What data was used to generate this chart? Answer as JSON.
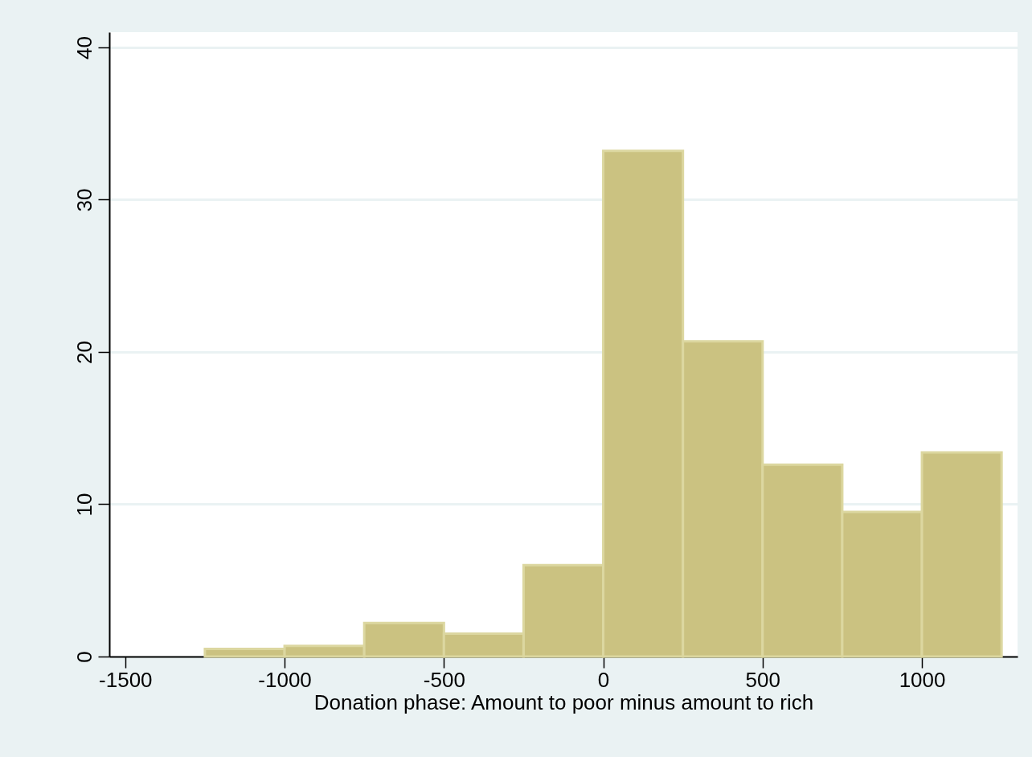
{
  "chart_data": {
    "type": "histogram",
    "xlabel": "Donation phase: Amount to poor minus amount to rich",
    "bins": [
      -1250,
      -1000,
      -750,
      -500,
      -250,
      0,
      250,
      500,
      750,
      1000,
      1250
    ],
    "values": [
      0.5,
      0.7,
      2.2,
      1.5,
      6,
      33.2,
      20.7,
      12.6,
      9.5,
      13.4
    ],
    "color": "#cbc281",
    "xlim": [
      -1550,
      1300
    ],
    "xticks": [
      -1500,
      -1000,
      -500,
      0,
      500,
      1000
    ],
    "ylim": [
      0,
      41
    ],
    "yticks": [
      0,
      10,
      20,
      30,
      40
    ],
    "grid": "y"
  }
}
